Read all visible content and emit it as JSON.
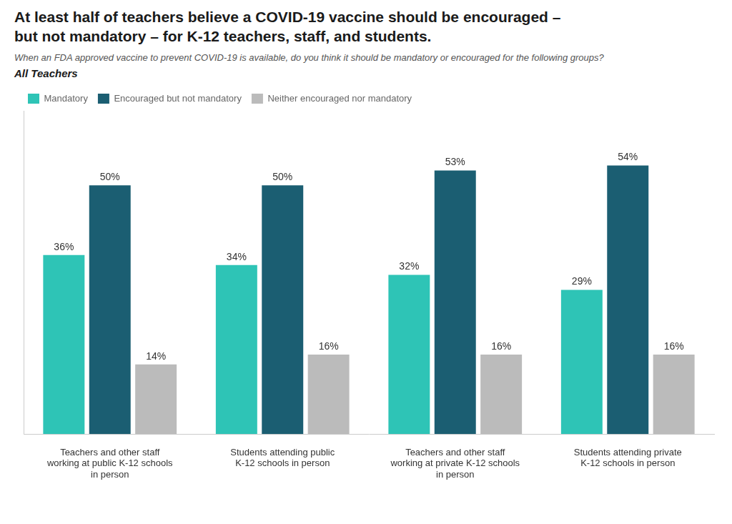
{
  "chart_data": {
    "type": "bar",
    "title": "At least half of teachers believe a COVID-19 vaccine should be encouraged –\nbut not mandatory – for K-12 teachers, staff, and students.",
    "subtitle": "When an FDA approved vaccine to prevent COVID-19 is available, do you think it should be mandatory or encouraged for the following groups?",
    "annotations": [
      "All Teachers"
    ],
    "categories": [
      "Teachers and other staff\nworking at public K-12 schools\nin person",
      "Students attending public\nK-12 schools in person",
      "Teachers and other staff\nworking at private K-12 schools\nin person",
      "Students attending private\nK-12 schools in person"
    ],
    "series": [
      {
        "name": "Mandatory",
        "color": "#2EC4B6",
        "values": [
          36,
          34,
          32,
          29
        ],
        "value_labels": [
          "36%",
          "34%",
          "32%",
          "29%"
        ]
      },
      {
        "name": "Encouraged but not mandatory",
        "color": "#1B5E72",
        "values": [
          50,
          50,
          53,
          54
        ],
        "value_labels": [
          "50%",
          "50%",
          "53%",
          "54%"
        ]
      },
      {
        "name": "Neither encouraged nor mandatory",
        "color": "#BBBBBB",
        "values": [
          14,
          16,
          16,
          16
        ],
        "value_labels": [
          "14%",
          "16%",
          "16%",
          "16%"
        ]
      }
    ],
    "ylim": [
      0,
      65
    ],
    "grid": false,
    "legend": "top",
    "data_labels": true,
    "tick_labels": "x"
  }
}
